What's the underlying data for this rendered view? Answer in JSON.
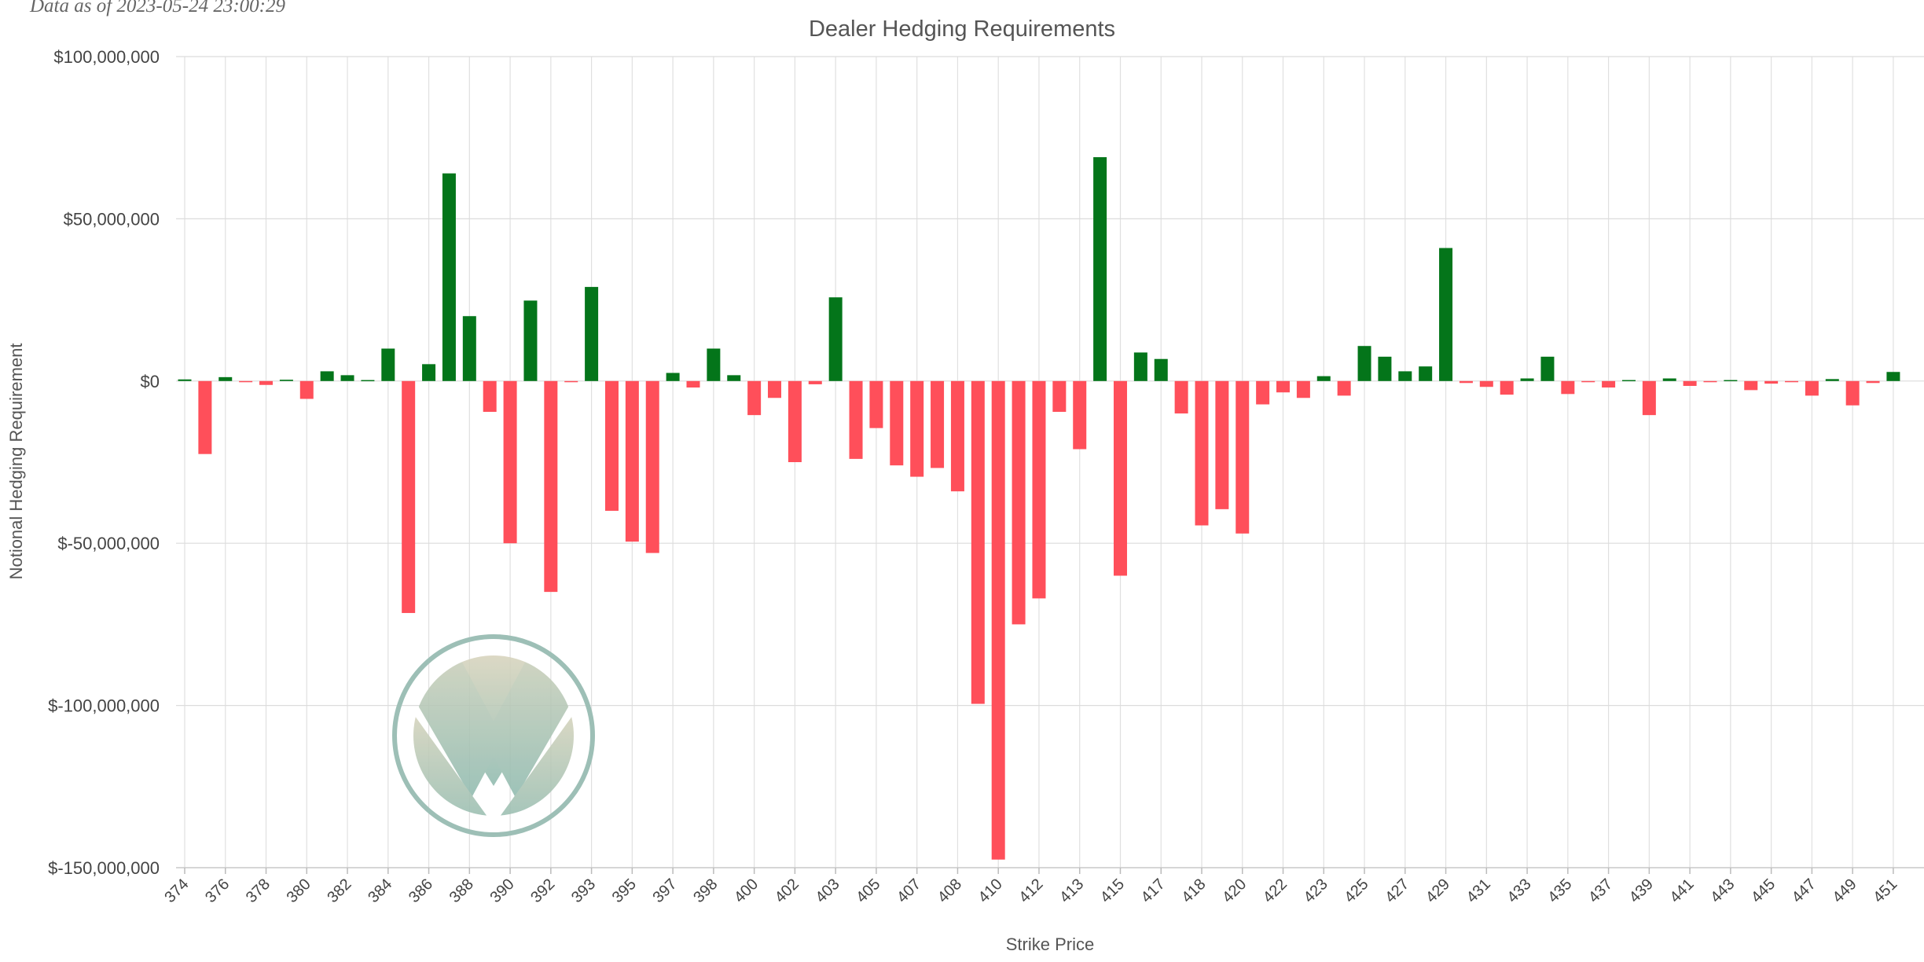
{
  "header": {
    "as_of": "Data as of 2023-05-24 23:00:29"
  },
  "watermark": {
    "icon": "v-shield-logo",
    "ring_color": "#9dbfb6",
    "top_color": "#d8d3bb",
    "bottom_color": "#8cb8ac"
  },
  "chart_data": {
    "type": "bar",
    "title": "Dealer Hedging Requirements",
    "xlabel": "Strike Price",
    "ylabel": "Notional Hedging Requirement",
    "ylim": [
      -150000000,
      100000000
    ],
    "yticks": [
      100000000,
      50000000,
      0,
      -50000000,
      -100000000,
      -150000000
    ],
    "ytick_labels": [
      "$100,000,000",
      "$50,000,000",
      "$0",
      "$-50,000,000",
      "$-100,000,000",
      "$-150,000,000"
    ],
    "xtick_labels": [
      "374",
      "376",
      "378",
      "380",
      "382",
      "384",
      "386",
      "388",
      "390",
      "392",
      "393",
      "395",
      "397",
      "398",
      "400",
      "402",
      "403",
      "405",
      "407",
      "408",
      "410",
      "412",
      "413",
      "415",
      "417",
      "418",
      "420",
      "422",
      "423",
      "425",
      "427",
      "429",
      "431",
      "433",
      "435",
      "437",
      "439",
      "441",
      "443",
      "445",
      "447",
      "449",
      "451"
    ],
    "grid": true,
    "positive_color": "#04751a",
    "negative_color": "#ff4f5a",
    "values": [
      500000,
      -22500000,
      1200000,
      -300000,
      -1200000,
      400000,
      -5500000,
      3000000,
      1800000,
      300000,
      10000000,
      -71500000,
      5200000,
      64000000,
      20000000,
      -9500000,
      -50000000,
      24800000,
      -65000000,
      -300000,
      29000000,
      -40000000,
      -49500000,
      -53000000,
      2500000,
      -2000000,
      10000000,
      1800000,
      -10500000,
      -5200000,
      -25000000,
      -1000000,
      25800000,
      -24000000,
      -14500000,
      -26000000,
      -29500000,
      -26800000,
      -34000000,
      -99500000,
      -147500000,
      -75000000,
      -67000000,
      -9500000,
      -21000000,
      69000000,
      -60000000,
      8800000,
      6800000,
      -10000000,
      -44500000,
      -39500000,
      -47000000,
      -7200000,
      -3500000,
      -5200000,
      1500000,
      -4500000,
      10800000,
      7500000,
      3000000,
      4500000,
      41000000,
      -600000,
      -1800000,
      -4200000,
      800000,
      7500000,
      -4000000,
      -200000,
      -2000000,
      300000,
      -10500000,
      800000,
      -1500000,
      -200000,
      300000,
      -2800000,
      -800000,
      -100000,
      -4500000,
      600000,
      -7500000,
      -600000,
      2800000
    ]
  }
}
